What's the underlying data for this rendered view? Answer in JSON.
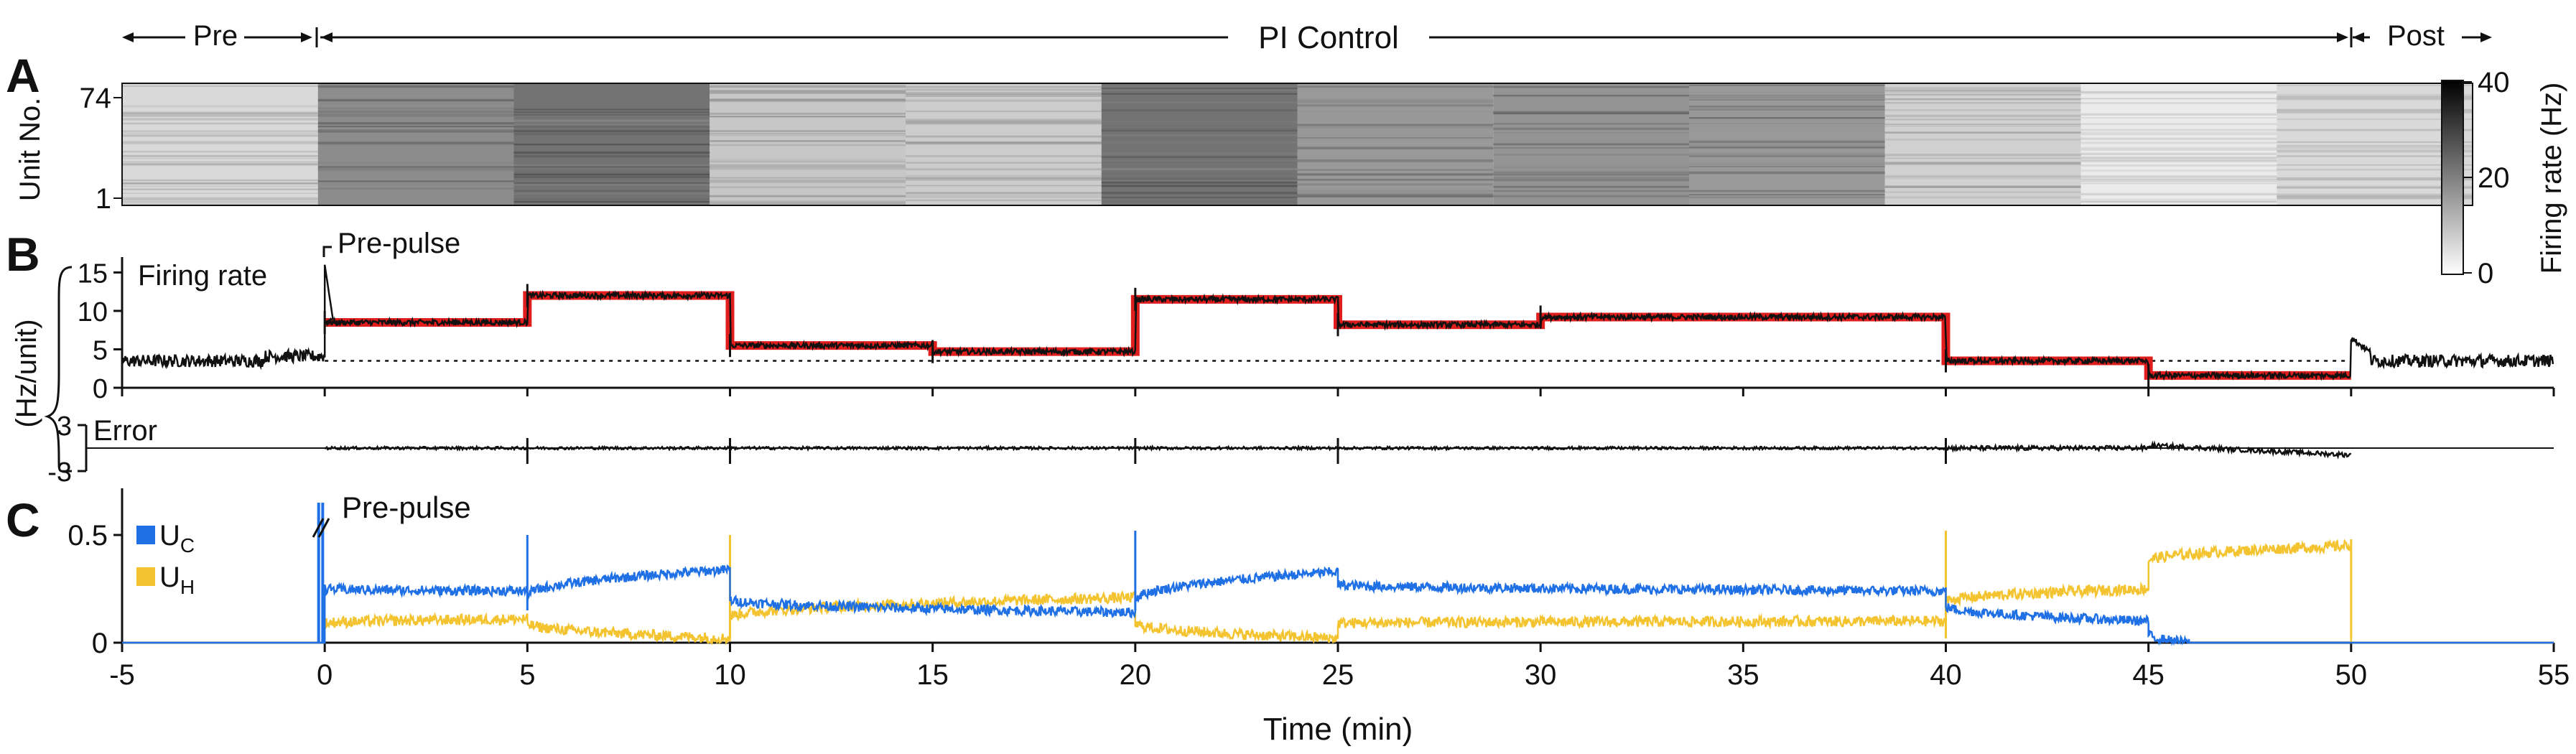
{
  "chart_data": [
    {
      "panel": "A",
      "type": "heatmap",
      "ylabel": "Unit No.",
      "yticks": [
        "74",
        "1"
      ],
      "colorbar": {
        "label": "Firing rate (Hz)",
        "ticks": [
          "40",
          "20",
          "0"
        ],
        "range": [
          0,
          40
        ],
        "colors": [
          "#ffffff",
          "#000000"
        ]
      },
      "phases": [
        {
          "label": "Pre",
          "start": -5,
          "end": 0
        },
        {
          "label": "PI Control",
          "start": 0,
          "end": 50
        },
        {
          "label": "Post",
          "start": 50,
          "end": 55
        }
      ],
      "segment_intensity": [
        {
          "start": -5,
          "end": 0,
          "level": 0.15
        },
        {
          "start": 0,
          "end": 5,
          "level": 0.45
        },
        {
          "start": 5,
          "end": 10,
          "level": 0.55
        },
        {
          "start": 10,
          "end": 15,
          "level": 0.22
        },
        {
          "start": 15,
          "end": 20,
          "level": 0.2
        },
        {
          "start": 20,
          "end": 25,
          "level": 0.55
        },
        {
          "start": 25,
          "end": 30,
          "level": 0.4
        },
        {
          "start": 30,
          "end": 35,
          "level": 0.42
        },
        {
          "start": 35,
          "end": 40,
          "level": 0.4
        },
        {
          "start": 40,
          "end": 45,
          "level": 0.18
        },
        {
          "start": 45,
          "end": 50,
          "level": 0.08
        },
        {
          "start": 50,
          "end": 55,
          "level": 0.15
        }
      ]
    },
    {
      "panel": "B",
      "type": "line",
      "ylabel": "(Hz/unit)",
      "firing_rate": {
        "label": "Firing rate",
        "yticks": [
          0,
          5,
          10,
          15
        ],
        "ylim": [
          0,
          17
        ],
        "baseline": 3.5,
        "annotation": "Pre-pulse",
        "target": [
          {
            "start": 0,
            "end": 5,
            "value": 8.5
          },
          {
            "start": 5,
            "end": 10,
            "value": 12
          },
          {
            "start": 10,
            "end": 15,
            "value": 5.5
          },
          {
            "start": 15,
            "end": 20,
            "value": 4.7
          },
          {
            "start": 20,
            "end": 25,
            "value": 11.5
          },
          {
            "start": 25,
            "end": 30,
            "value": 8.2
          },
          {
            "start": 30,
            "end": 40,
            "value": 9.2
          },
          {
            "start": 40,
            "end": 45,
            "value": 3.5
          },
          {
            "start": 45,
            "end": 50,
            "value": 1.6
          }
        ],
        "measured_pre": 3.5,
        "measured_post": 3.5
      },
      "error": {
        "label": "Error",
        "yticks": [
          "3",
          "-3"
        ],
        "ylim": [
          -3,
          3
        ]
      }
    },
    {
      "panel": "C",
      "type": "line",
      "xlabel": "Time (min)",
      "xlim": [
        -5,
        55
      ],
      "xticks": [
        "-5",
        "0",
        "5",
        "10",
        "15",
        "20",
        "25",
        "30",
        "35",
        "40",
        "45",
        "50",
        "55"
      ],
      "yticks": [
        "0.5",
        "0"
      ],
      "ylim": [
        0,
        0.5
      ],
      "annotation": "Pre-pulse",
      "series": [
        {
          "name": "UC",
          "label_main": "U",
          "label_sub": "C",
          "color": "#1f6fe5",
          "segments": [
            {
              "start": 0,
              "end": 5,
              "from": 0.25,
              "to": 0.24
            },
            {
              "start": 5,
              "end": 10,
              "from": 0.22,
              "to": 0.34
            },
            {
              "start": 10,
              "end": 20,
              "from": 0.2,
              "to": 0.14
            },
            {
              "start": 20,
              "end": 25,
              "from": 0.2,
              "to": 0.33
            },
            {
              "start": 25,
              "end": 40,
              "from": 0.27,
              "to": 0.24
            },
            {
              "start": 40,
              "end": 45,
              "from": 0.17,
              "to": 0.1
            },
            {
              "start": 45,
              "end": 46,
              "from": 0.04,
              "to": 0.0
            }
          ]
        },
        {
          "name": "UH",
          "label_main": "U",
          "label_sub": "H",
          "color": "#f4c430",
          "segments": [
            {
              "start": 0,
              "end": 5,
              "from": 0.09,
              "to": 0.11
            },
            {
              "start": 5,
              "end": 10,
              "from": 0.09,
              "to": 0.02
            },
            {
              "start": 10,
              "end": 20,
              "from": 0.12,
              "to": 0.21
            },
            {
              "start": 20,
              "end": 25,
              "from": 0.09,
              "to": 0.02
            },
            {
              "start": 25,
              "end": 40,
              "from": 0.09,
              "to": 0.1
            },
            {
              "start": 40,
              "end": 45,
              "from": 0.19,
              "to": 0.25
            },
            {
              "start": 45,
              "end": 50,
              "from": 0.38,
              "to": 0.45
            }
          ]
        }
      ]
    }
  ],
  "panels": {
    "a": "A",
    "b": "B",
    "c": "C"
  }
}
